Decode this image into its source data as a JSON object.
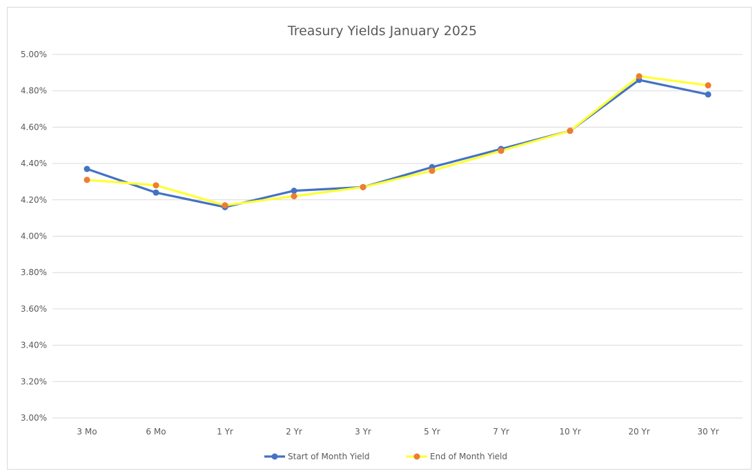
{
  "chart_data": {
    "type": "line",
    "title": "Treasury Yields January 2025",
    "xlabel": "",
    "ylabel": "",
    "categories": [
      "3 Mo",
      "6 Mo",
      "1 Yr",
      "2 Yr",
      "3 Yr",
      "5 Yr",
      "7 Yr",
      "10 Yr",
      "20 Yr",
      "30 Yr"
    ],
    "ylim": [
      3.0,
      5.0
    ],
    "y_ticks": [
      3.0,
      3.2,
      3.4,
      3.6,
      3.8,
      4.0,
      4.2,
      4.4,
      4.6,
      4.8,
      5.0
    ],
    "y_tick_labels": [
      "3.00%",
      "3.20%",
      "3.40%",
      "3.60%",
      "3.80%",
      "4.00%",
      "4.20%",
      "4.40%",
      "4.60%",
      "4.80%",
      "5.00%"
    ],
    "grid": true,
    "legend_position": "bottom",
    "series": [
      {
        "name": "Start of Month Yield",
        "values": [
          4.37,
          4.24,
          4.16,
          4.25,
          4.27,
          4.38,
          4.48,
          4.58,
          4.86,
          4.78
        ],
        "line_color": "#4472c4",
        "marker_color": "#4472c4"
      },
      {
        "name": "End of Month Yield",
        "values": [
          4.31,
          4.28,
          4.17,
          4.22,
          4.27,
          4.36,
          4.47,
          4.58,
          4.88,
          4.83
        ],
        "line_color": "#ffff33",
        "marker_color": "#ed7d31"
      }
    ]
  }
}
